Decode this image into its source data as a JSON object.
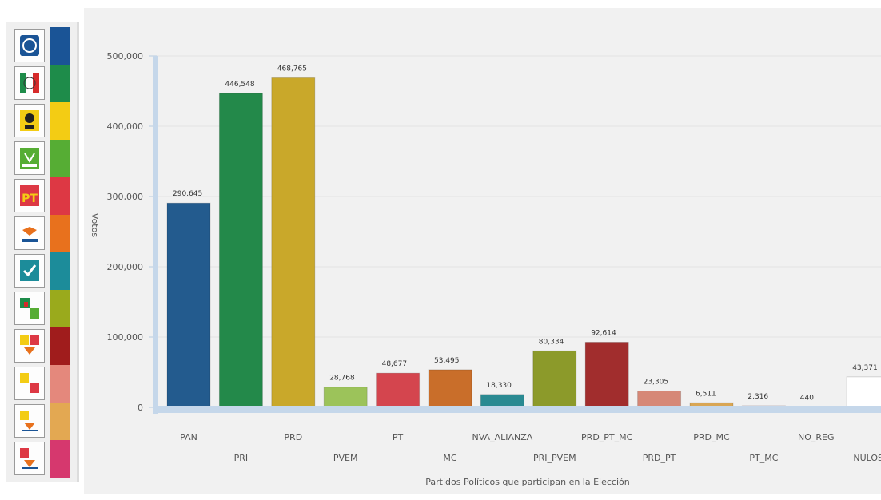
{
  "legend": {
    "items": [
      {
        "party": "PAN",
        "icon": "pan-logo-icon",
        "color": "#1a5496"
      },
      {
        "party": "PRI",
        "icon": "pri-logo-icon",
        "color": "#1e8c4a"
      },
      {
        "party": "PRD",
        "icon": "prd-logo-icon",
        "color": "#f3cc14"
      },
      {
        "party": "PVEM",
        "icon": "pvem-logo-icon",
        "color": "#56ad34"
      },
      {
        "party": "PT",
        "icon": "pt-logo-icon",
        "color": "#dd3844"
      },
      {
        "party": "MC",
        "icon": "mc-logo-icon",
        "color": "#e8711d"
      },
      {
        "party": "NVA_ALIANZA",
        "icon": "nva-alianza-logo-icon",
        "color": "#1c8c9a"
      },
      {
        "party": "PRI_PVEM",
        "icon": "pri-pvem-logo-icon",
        "color": "#9aaa1c"
      },
      {
        "party": "PRD_PT_MC",
        "icon": "prd-pt-mc-logo-icon",
        "color": "#a01c1c"
      },
      {
        "party": "PRD_PT",
        "icon": "prd-pt-logo-icon",
        "color": "#e4887c"
      },
      {
        "party": "PRD_MC",
        "icon": "prd-mc-logo-icon",
        "color": "#e3a852"
      },
      {
        "party": "PT_MC",
        "icon": "pt-mc-logo-icon",
        "color": "#d6386e"
      }
    ]
  },
  "chart_data": {
    "type": "bar",
    "title": "",
    "xlabel": "Partidos Políticos que participan en la Elección",
    "ylabel": "Votos",
    "ylim": [
      0,
      500000
    ],
    "yticks": [
      0,
      100000,
      200000,
      300000,
      400000,
      500000
    ],
    "ytick_labels": [
      "0",
      "100,000",
      "200,000",
      "300,000",
      "400,000",
      "500,000"
    ],
    "grid": true,
    "categories": [
      "PAN",
      "PRI",
      "PRD",
      "PVEM",
      "PT",
      "MC",
      "NVA_ALIANZA",
      "PRI_PVEM",
      "PRD_PT_MC",
      "PRD_PT",
      "PRD_MC",
      "PT_MC",
      "NO_REG",
      "NULOS"
    ],
    "values": [
      290645,
      446548,
      468765,
      28768,
      48677,
      53495,
      18330,
      80334,
      92614,
      23305,
      6511,
      2316,
      440,
      43371
    ],
    "value_labels": [
      "290,645",
      "446,548",
      "468,765",
      "28,768",
      "48,677",
      "53,495",
      "18,330",
      "80,334",
      "92,614",
      "23,305",
      "6,511",
      "2,316",
      "440",
      "43,371"
    ],
    "colors": [
      "#235b8e",
      "#23894a",
      "#c9a82a",
      "#9cc35a",
      "#d4454e",
      "#c96e2a",
      "#2a8a92",
      "#8c9a2a",
      "#a12d2d",
      "#d68877",
      "#d9a654",
      "#d24a7a",
      "#c8d8e8",
      "#ffffff"
    ]
  }
}
